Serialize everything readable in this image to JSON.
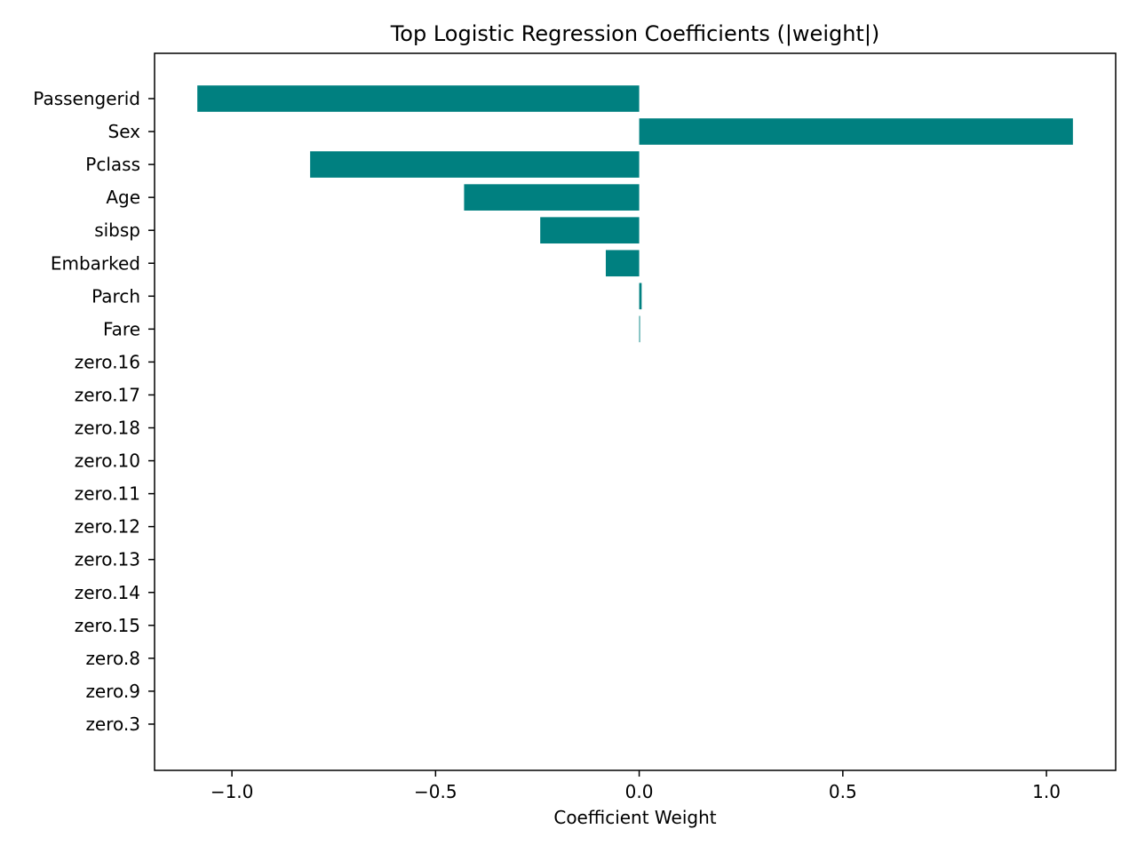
{
  "chart_data": {
    "type": "bar",
    "orientation": "horizontal",
    "title": "Top Logistic Regression Coefficients (|weight|)",
    "xlabel": "Coefficient Weight",
    "ylabel": "",
    "categories": [
      "Passengerid",
      "Sex",
      "Pclass",
      "Age",
      "sibsp",
      "Embarked",
      "Parch",
      "Fare",
      "zero.16",
      "zero.17",
      "zero.18",
      "zero.10",
      "zero.11",
      "zero.12",
      "zero.13",
      "zero.14",
      "zero.15",
      "zero.8",
      "zero.9",
      "zero.3"
    ],
    "values": [
      -1.085,
      1.065,
      -0.808,
      -0.43,
      -0.243,
      -0.082,
      0.006,
      0.002,
      0,
      0,
      0,
      0,
      0,
      0,
      0,
      0,
      0,
      0,
      0,
      0
    ],
    "xlim": [
      -1.19,
      1.17
    ],
    "xticks": [
      -1.0,
      -0.5,
      0.0,
      0.5,
      1.0
    ],
    "xtick_labels": [
      "−1.0",
      "−0.5",
      "0.0",
      "0.5",
      "1.0"
    ],
    "grid": false,
    "legend": "none",
    "bar_color": "#008080"
  }
}
